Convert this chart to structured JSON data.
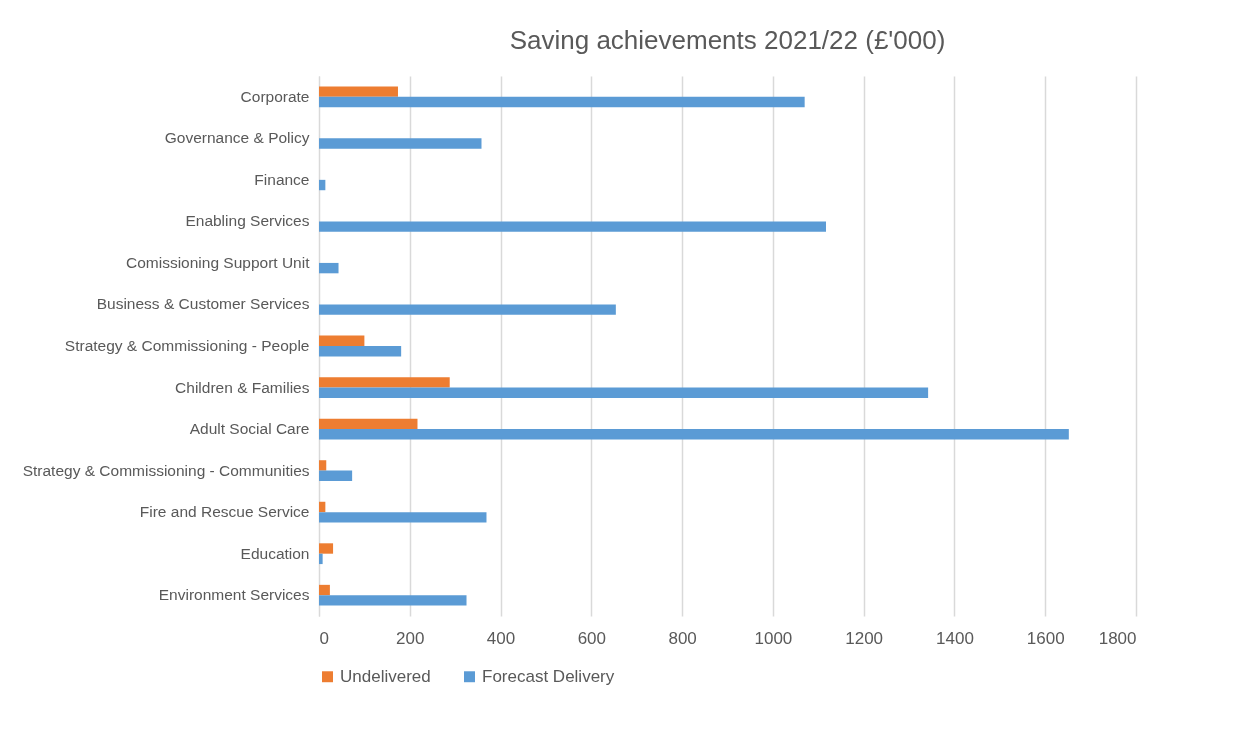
{
  "chart_data": {
    "type": "bar",
    "orientation": "horizontal",
    "title": "Saving achievements 2021/22 (£'000)",
    "categories": [
      "Corporate",
      "Governance & Policy",
      "Finance",
      "Enabling Services",
      "Comissioning Support Unit",
      "Business & Customer Services",
      "Strategy & Commissioning - People",
      "Children & Families",
      "Adult Social Care",
      "Strategy & Commissioning - Communities",
      "Fire and Rescue Service",
      "Education",
      "Environment Services"
    ],
    "series": [
      {
        "name": "Undelivered",
        "color": "#ed7d31",
        "values": [
          174,
          null,
          null,
          null,
          null,
          null,
          100,
          288,
          217,
          16,
          14,
          31,
          24
        ]
      },
      {
        "name": "Forecast Delivery",
        "color": "#5b9bd5",
        "values": [
          1070,
          358,
          14,
          1117,
          43,
          654,
          181,
          1342,
          1652,
          73,
          369,
          8,
          325
        ]
      }
    ],
    "xlim": [
      0,
      1800
    ],
    "xticks": [
      0,
      200,
      400,
      600,
      800,
      1000,
      1200,
      1400,
      1600,
      1800
    ],
    "grid": "x",
    "legend": "bottom"
  }
}
